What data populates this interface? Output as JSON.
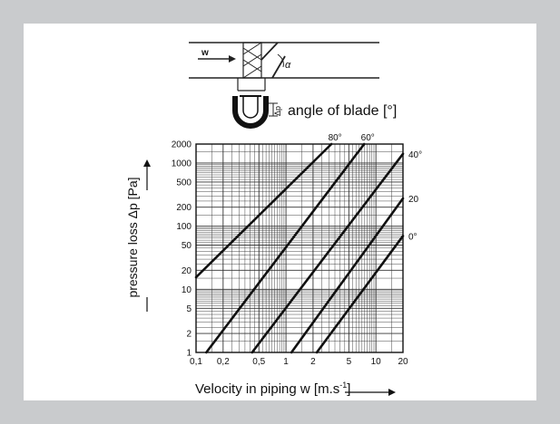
{
  "header": {
    "blade_label": "angle of blade  [°]",
    "flow_symbol": "w",
    "angle_symbol": "α",
    "dp_symbol": "Δp"
  },
  "chart_data": {
    "type": "line",
    "xlabel": "Velocity in piping  w  [m.s-1]",
    "xlabel_main": "Velocity in piping  w  [m.s",
    "xlabel_exp": "-1",
    "xlabel_end": "]",
    "ylabel": "pressure loss Δp [Pa]",
    "x_scale": "log",
    "y_scale": "log",
    "xlim": [
      0.1,
      20
    ],
    "ylim": [
      1,
      2000
    ],
    "x_ticks": [
      {
        "v": 0.1,
        "label": "0,1"
      },
      {
        "v": 0.2,
        "label": "0,2"
      },
      {
        "v": 0.5,
        "label": "0,5"
      },
      {
        "v": 1,
        "label": "1"
      },
      {
        "v": 2,
        "label": "2"
      },
      {
        "v": 5,
        "label": "5"
      },
      {
        "v": 10,
        "label": "10"
      },
      {
        "v": 20,
        "label": "20"
      }
    ],
    "y_ticks": [
      {
        "v": 1,
        "label": "1"
      },
      {
        "v": 2,
        "label": "2"
      },
      {
        "v": 5,
        "label": "5"
      },
      {
        "v": 10,
        "label": "10"
      },
      {
        "v": 20,
        "label": "20"
      },
      {
        "v": 50,
        "label": "50"
      },
      {
        "v": 100,
        "label": "100"
      },
      {
        "v": 200,
        "label": "200"
      },
      {
        "v": 500,
        "label": "500"
      },
      {
        "v": 1000,
        "label": "1000"
      },
      {
        "v": 2000,
        "label": "2000"
      }
    ],
    "grid": true,
    "series": [
      {
        "name": "80°",
        "label_pos": "top",
        "points": [
          [
            0.1,
            15.5
          ],
          [
            3.2,
            2000
          ]
        ]
      },
      {
        "name": "60°",
        "label_pos": "top",
        "points": [
          [
            0.13,
            1
          ],
          [
            7.4,
            2000
          ]
        ]
      },
      {
        "name": "40°",
        "label_pos": "right",
        "points": [
          [
            0.42,
            1
          ],
          [
            20,
            1400
          ]
        ]
      },
      {
        "name": "20",
        "label_pos": "right",
        "points": [
          [
            1.15,
            1
          ],
          [
            20,
            275
          ]
        ]
      },
      {
        "name": "0°",
        "label_pos": "right",
        "points": [
          [
            2.2,
            1
          ],
          [
            20,
            70
          ]
        ]
      }
    ]
  }
}
